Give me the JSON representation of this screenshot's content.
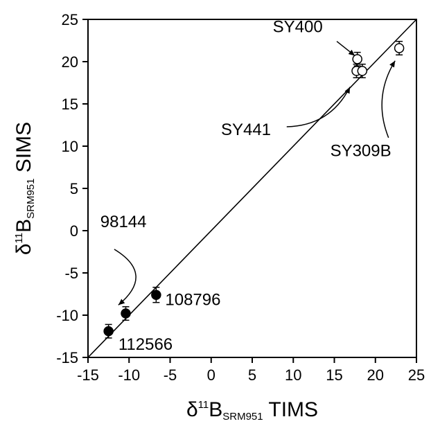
{
  "chart_data": {
    "type": "scatter",
    "title": "",
    "xlabel": {
      "symbol": "δ",
      "sup": "11",
      "main": "B",
      "sub": "SRM951",
      "suffix": " TIMS"
    },
    "ylabel": {
      "symbol": "δ",
      "sup": "11",
      "main": "B",
      "sub": "SRM951",
      "suffix": " SIMS"
    },
    "xlim": [
      -15,
      25
    ],
    "ylim": [
      -15,
      25
    ],
    "xticks": [
      -15,
      -10,
      -5,
      0,
      5,
      10,
      15,
      20,
      25
    ],
    "yticks": [
      -15,
      -10,
      -5,
      0,
      5,
      10,
      15,
      20,
      25
    ],
    "grid": false,
    "reference_line": {
      "label": "",
      "from": [
        -15,
        -15
      ],
      "to": [
        25,
        25
      ]
    },
    "series": [
      {
        "marker": "filled-circle",
        "points": [
          {
            "x": -12.5,
            "y": -11.9,
            "err": 0.8
          },
          {
            "x": -10.4,
            "y": -9.8,
            "err": 0.8
          },
          {
            "x": -6.7,
            "y": -7.6,
            "err": 0.9
          }
        ]
      },
      {
        "marker": "open-circle",
        "points": [
          {
            "x": 17.8,
            "y": 20.3,
            "err": 0.8
          },
          {
            "x": 17.7,
            "y": 18.9,
            "err": 0.8
          },
          {
            "x": 18.4,
            "y": 18.9,
            "err": 0.8
          },
          {
            "x": 22.9,
            "y": 21.6,
            "err": 0.8
          }
        ]
      }
    ],
    "annotations": [
      {
        "text": "SY400",
        "text_at": [
          7.5,
          23.5
        ],
        "anchor": "start",
        "arrow": {
          "from": [
            15.3,
            22.4
          ],
          "to": [
            17.5,
            20.7
          ],
          "curve": 0
        }
      },
      {
        "text": "SY441",
        "text_at": [
          1.2,
          11.3
        ],
        "anchor": "start",
        "arrow": {
          "from": [
            9.2,
            12.3
          ],
          "to": [
            16.9,
            17.0
          ],
          "curve": 0.6
        }
      },
      {
        "text": "SY309B",
        "text_at": [
          14.5,
          8.8
        ],
        "anchor": "start",
        "arrow": {
          "from": [
            21.6,
            11.0
          ],
          "to": [
            22.4,
            20.1
          ],
          "curve": -0.5
        }
      },
      {
        "text": "98144",
        "text_at": [
          -13.5,
          0.4
        ],
        "anchor": "start",
        "arrow": {
          "from": [
            -11.8,
            -2.2
          ],
          "to": [
            -11.3,
            -8.8
          ],
          "curve": -1.4
        }
      },
      {
        "text": "108796",
        "text_at": [
          -5.6,
          -8.8
        ],
        "anchor": "start",
        "arrow": null
      },
      {
        "text": "112566",
        "text_at": [
          -11.3,
          -14.1
        ],
        "anchor": "start",
        "arrow": null
      }
    ]
  }
}
